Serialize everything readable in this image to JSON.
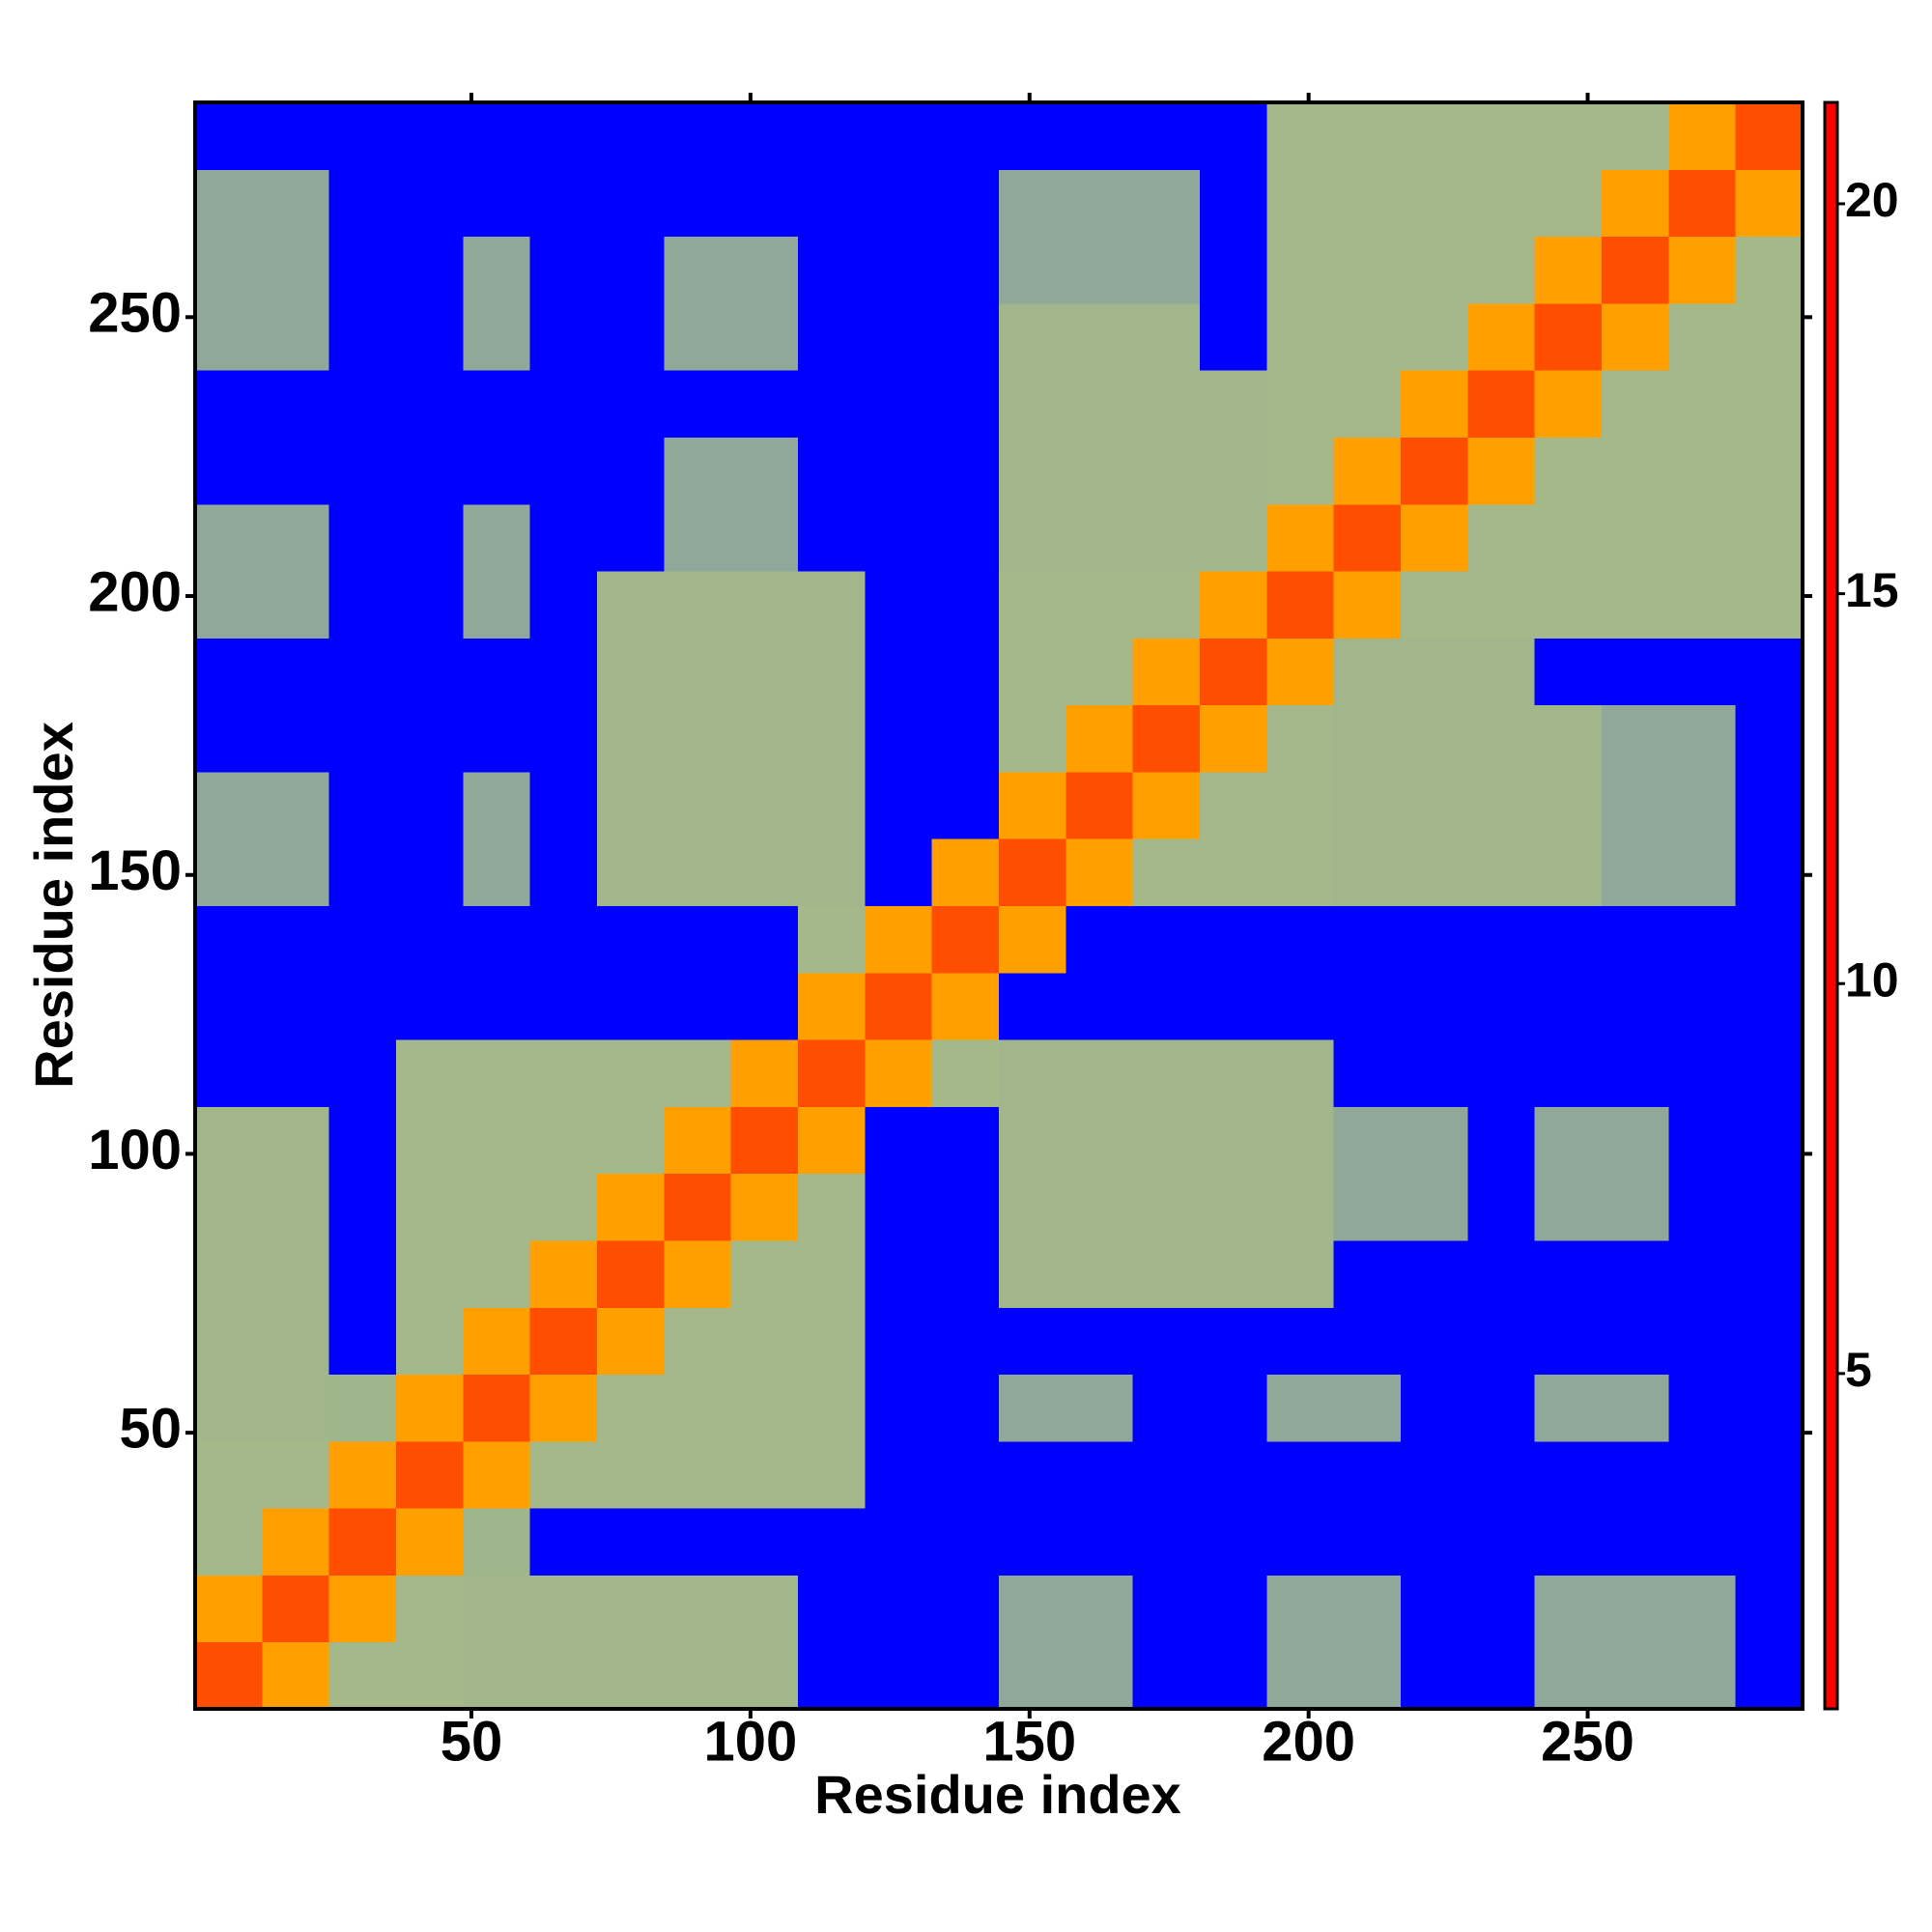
{
  "chart_data": {
    "type": "heatmap",
    "x_label": "Residue index",
    "y_label": "Residue index",
    "xlim": [
      0.5,
      288.5
    ],
    "ylim": [
      0.5,
      288.5
    ],
    "xticks": [
      50,
      100,
      150,
      200,
      250
    ],
    "yticks": [
      50,
      100,
      150,
      200,
      250
    ],
    "x_bins": [
      0.5,
      12.5,
      24.5,
      36.5,
      48.5,
      60.5,
      72.5,
      84.5,
      96.5,
      108.5,
      120.5,
      132.5,
      144.5,
      156.5,
      168.5,
      180.5,
      192.5,
      204.5,
      216.5,
      228.5,
      240.5,
      252.5,
      264.5,
      276.5,
      288.5
    ],
    "y_bins": [
      0.5,
      12.5,
      24.5,
      36.5,
      48.5,
      60.5,
      72.5,
      84.5,
      96.5,
      108.5,
      120.5,
      132.5,
      144.5,
      156.5,
      168.5,
      180.5,
      192.5,
      204.5,
      216.5,
      228.5,
      240.5,
      252.5,
      264.5,
      276.5,
      288.5
    ],
    "clim": [
      0.7,
      21.3
    ],
    "cticks": [
      5,
      10,
      15,
      20
    ],
    "colorscale": [
      [
        0.7,
        "#ff0000"
      ],
      [
        5,
        "#ff6600"
      ],
      [
        8.5,
        "#ffaa00"
      ],
      [
        8.6,
        "#aabb88"
      ],
      [
        13,
        "#9fb58c"
      ],
      [
        17,
        "#7f9aa8"
      ],
      [
        19.5,
        "#5570c0"
      ],
      [
        20.5,
        "#0000ff"
      ],
      [
        21.3,
        "#0000ff"
      ]
    ],
    "z": [
      [
        4,
        8,
        11,
        11,
        12,
        12,
        12,
        12,
        12,
        21,
        21,
        21,
        15,
        15,
        21,
        21,
        15,
        15,
        21,
        21,
        15,
        15,
        15,
        21
      ],
      [
        8,
        4,
        8,
        11,
        12,
        12,
        12,
        12,
        12,
        21,
        21,
        21,
        15,
        15,
        21,
        21,
        15,
        15,
        21,
        21,
        15,
        15,
        15,
        21
      ],
      [
        11,
        8,
        4,
        8,
        13,
        21,
        21,
        21,
        21,
        21,
        21,
        21,
        21,
        21,
        21,
        21,
        21,
        21,
        21,
        21,
        21,
        21,
        21,
        21
      ],
      [
        11,
        11,
        8,
        4,
        8,
        11,
        11,
        11,
        11,
        11,
        21,
        21,
        21,
        21,
        21,
        21,
        21,
        21,
        21,
        21,
        21,
        21,
        21,
        21
      ],
      [
        12,
        12,
        13,
        8,
        4,
        8,
        11,
        11,
        11,
        11,
        21,
        21,
        15,
        15,
        21,
        21,
        15,
        15,
        21,
        21,
        15,
        15,
        21,
        21
      ],
      [
        12,
        12,
        21,
        11,
        8,
        4,
        8,
        11,
        11,
        11,
        21,
        21,
        21,
        21,
        21,
        21,
        21,
        21,
        21,
        21,
        21,
        21,
        21,
        21
      ],
      [
        12,
        12,
        21,
        11,
        11,
        8,
        4,
        8,
        11,
        11,
        21,
        21,
        12,
        12,
        12,
        12,
        12,
        21,
        21,
        21,
        21,
        21,
        21,
        21
      ],
      [
        12,
        12,
        21,
        11,
        11,
        11,
        8,
        4,
        8,
        11,
        21,
        21,
        12,
        12,
        12,
        12,
        12,
        15,
        15,
        21,
        15,
        15,
        21,
        21
      ],
      [
        12,
        12,
        21,
        11,
        11,
        11,
        11,
        8,
        4,
        8,
        21,
        21,
        12,
        12,
        12,
        12,
        12,
        15,
        15,
        21,
        15,
        15,
        21,
        21
      ],
      [
        21,
        21,
        21,
        11,
        11,
        11,
        11,
        11,
        8,
        4,
        8,
        11,
        12,
        12,
        12,
        12,
        12,
        21,
        21,
        21,
        21,
        21,
        21,
        21
      ],
      [
        21,
        21,
        21,
        21,
        21,
        21,
        21,
        21,
        21,
        8,
        4,
        8,
        21,
        21,
        21,
        21,
        21,
        21,
        21,
        21,
        21,
        21,
        21,
        21
      ],
      [
        21,
        21,
        21,
        21,
        21,
        21,
        21,
        21,
        21,
        11,
        8,
        4,
        8,
        21,
        21,
        21,
        21,
        21,
        21,
        21,
        21,
        21,
        21,
        21
      ],
      [
        15,
        15,
        21,
        21,
        15,
        21,
        12,
        12,
        12,
        12,
        21,
        8,
        4,
        8,
        11,
        11,
        11,
        12,
        12,
        12,
        12,
        15,
        15,
        21
      ],
      [
        15,
        15,
        21,
        21,
        15,
        21,
        12,
        12,
        12,
        12,
        21,
        21,
        8,
        4,
        8,
        11,
        11,
        12,
        12,
        12,
        12,
        15,
        15,
        21
      ],
      [
        21,
        21,
        21,
        21,
        21,
        21,
        12,
        12,
        12,
        12,
        21,
        21,
        11,
        8,
        4,
        8,
        11,
        12,
        12,
        12,
        12,
        15,
        15,
        21
      ],
      [
        21,
        21,
        21,
        21,
        21,
        21,
        12,
        12,
        12,
        12,
        21,
        21,
        11,
        11,
        8,
        4,
        8,
        12,
        12,
        12,
        21,
        21,
        21,
        21
      ],
      [
        15,
        15,
        21,
        21,
        15,
        21,
        12,
        12,
        12,
        12,
        21,
        21,
        11,
        11,
        11,
        8,
        4,
        8,
        11,
        11,
        11,
        11,
        11,
        11
      ],
      [
        15,
        15,
        21,
        21,
        15,
        21,
        21,
        15,
        15,
        21,
        21,
        21,
        12,
        12,
        12,
        12,
        8,
        4,
        8,
        11,
        11,
        11,
        11,
        11
      ],
      [
        21,
        21,
        21,
        21,
        21,
        21,
        21,
        15,
        15,
        21,
        21,
        21,
        12,
        12,
        12,
        12,
        11,
        8,
        4,
        8,
        11,
        11,
        11,
        11
      ],
      [
        21,
        21,
        21,
        21,
        21,
        21,
        21,
        21,
        21,
        21,
        21,
        21,
        12,
        12,
        12,
        12,
        11,
        11,
        8,
        4,
        8,
        11,
        11,
        11
      ],
      [
        15,
        15,
        21,
        21,
        15,
        21,
        21,
        15,
        15,
        21,
        21,
        21,
        12,
        12,
        12,
        21,
        11,
        11,
        11,
        8,
        4,
        8,
        11,
        11
      ],
      [
        15,
        15,
        21,
        21,
        15,
        21,
        21,
        15,
        15,
        21,
        21,
        21,
        15,
        15,
        15,
        21,
        11,
        11,
        11,
        11,
        8,
        4,
        8,
        11
      ],
      [
        15,
        15,
        21,
        21,
        21,
        21,
        21,
        21,
        21,
        21,
        21,
        21,
        15,
        15,
        15,
        21,
        11,
        11,
        11,
        11,
        11,
        8,
        4,
        8
      ],
      [
        21,
        21,
        21,
        21,
        21,
        21,
        21,
        21,
        21,
        21,
        21,
        21,
        21,
        21,
        21,
        21,
        11,
        11,
        11,
        11,
        11,
        11,
        8,
        4
      ]
    ]
  }
}
